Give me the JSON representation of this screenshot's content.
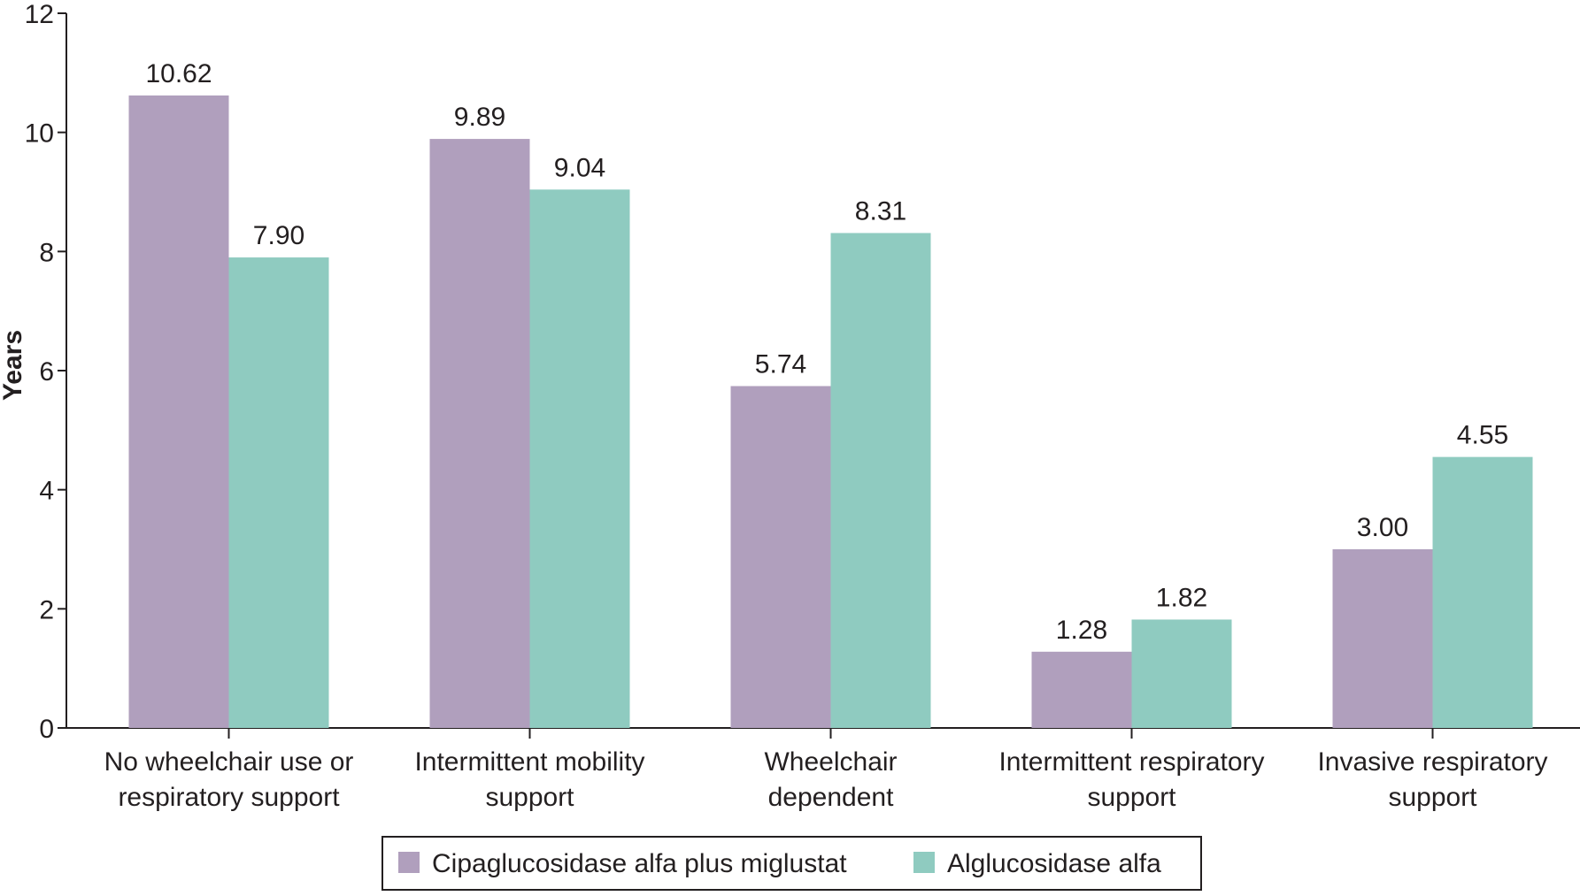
{
  "chart_data": {
    "type": "bar",
    "title": "",
    "xlabel": "",
    "ylabel": "Years",
    "ylim": [
      0,
      12
    ],
    "yticks": [
      0,
      2,
      4,
      6,
      8,
      10,
      12
    ],
    "grid": false,
    "legend_position": "bottom-center",
    "categories": [
      [
        "No wheelchair use or",
        "respiratory support"
      ],
      [
        "Intermittent mobility",
        "support"
      ],
      [
        "Wheelchair",
        "dependent"
      ],
      [
        "Intermittent respiratory",
        "support"
      ],
      [
        "Invasive respiratory",
        "support"
      ]
    ],
    "series": [
      {
        "name": "Cipaglucosidase alfa plus miglustat",
        "color": "#b09fbd",
        "values": [
          10.62,
          9.89,
          5.74,
          1.28,
          3.0
        ],
        "labels": [
          "10.62",
          "9.89",
          "5.74",
          "1.28",
          "3.00"
        ]
      },
      {
        "name": "Alglucosidase alfa",
        "color": "#8fcbc0",
        "values": [
          7.9,
          9.04,
          8.31,
          1.82,
          4.55
        ],
        "labels": [
          "7.90",
          "9.04",
          "8.31",
          "1.82",
          "4.55"
        ]
      }
    ]
  }
}
